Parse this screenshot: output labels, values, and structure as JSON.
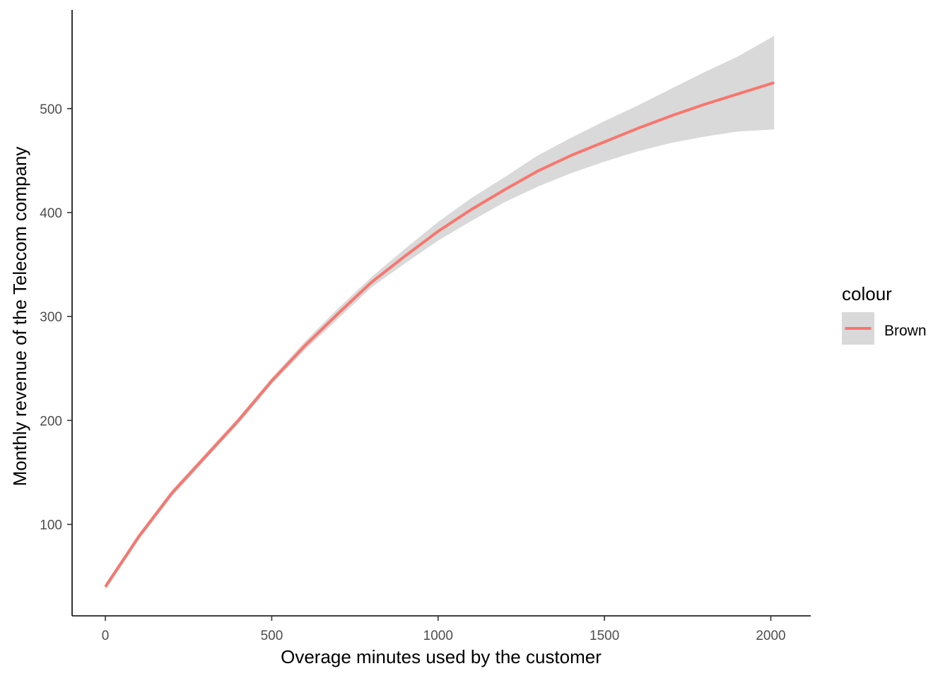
{
  "chart_data": {
    "type": "line",
    "title": "",
    "xlabel": "Overage minutes used by the customer",
    "ylabel": "Monthly revenue of the Telecom company",
    "xlim": [
      -100,
      2120
    ],
    "ylim": [
      12,
      595
    ],
    "x_ticks": [
      0,
      500,
      1000,
      1500,
      2000
    ],
    "x_tick_labels": [
      "0",
      "500",
      "1000",
      "1500",
      "2000"
    ],
    "y_ticks": [
      100,
      200,
      300,
      400,
      500
    ],
    "y_tick_labels": [
      "100",
      "200",
      "300",
      "400",
      "500"
    ],
    "grid": false,
    "legend": {
      "title": "colour",
      "position": "right",
      "entries": [
        {
          "label": "Brown",
          "color": "#F8766D",
          "band_color": "#D9D9D9"
        }
      ]
    },
    "series": [
      {
        "name": "Brown",
        "color": "#F8766D",
        "x": [
          0,
          100,
          200,
          300,
          400,
          500,
          600,
          700,
          800,
          900,
          1000,
          1100,
          1200,
          1300,
          1400,
          1500,
          1600,
          1700,
          1800,
          1900,
          2010
        ],
        "y": [
          40,
          88,
          130,
          165,
          200,
          238,
          272,
          303,
          333,
          358,
          382,
          403,
          422,
          440,
          455,
          468,
          481,
          493,
          504,
          514,
          525
        ],
        "ci_lower": [
          37,
          85,
          127,
          162,
          197,
          235,
          268,
          298,
          328,
          351,
          373,
          392,
          410,
          425,
          438,
          449,
          459,
          467,
          473,
          478,
          480
        ],
        "ci_upper": [
          43,
          91,
          133,
          168,
          203,
          241,
          276,
          308,
          338,
          365,
          391,
          414,
          434,
          455,
          472,
          488,
          503,
          519,
          535,
          550,
          570
        ]
      }
    ]
  }
}
